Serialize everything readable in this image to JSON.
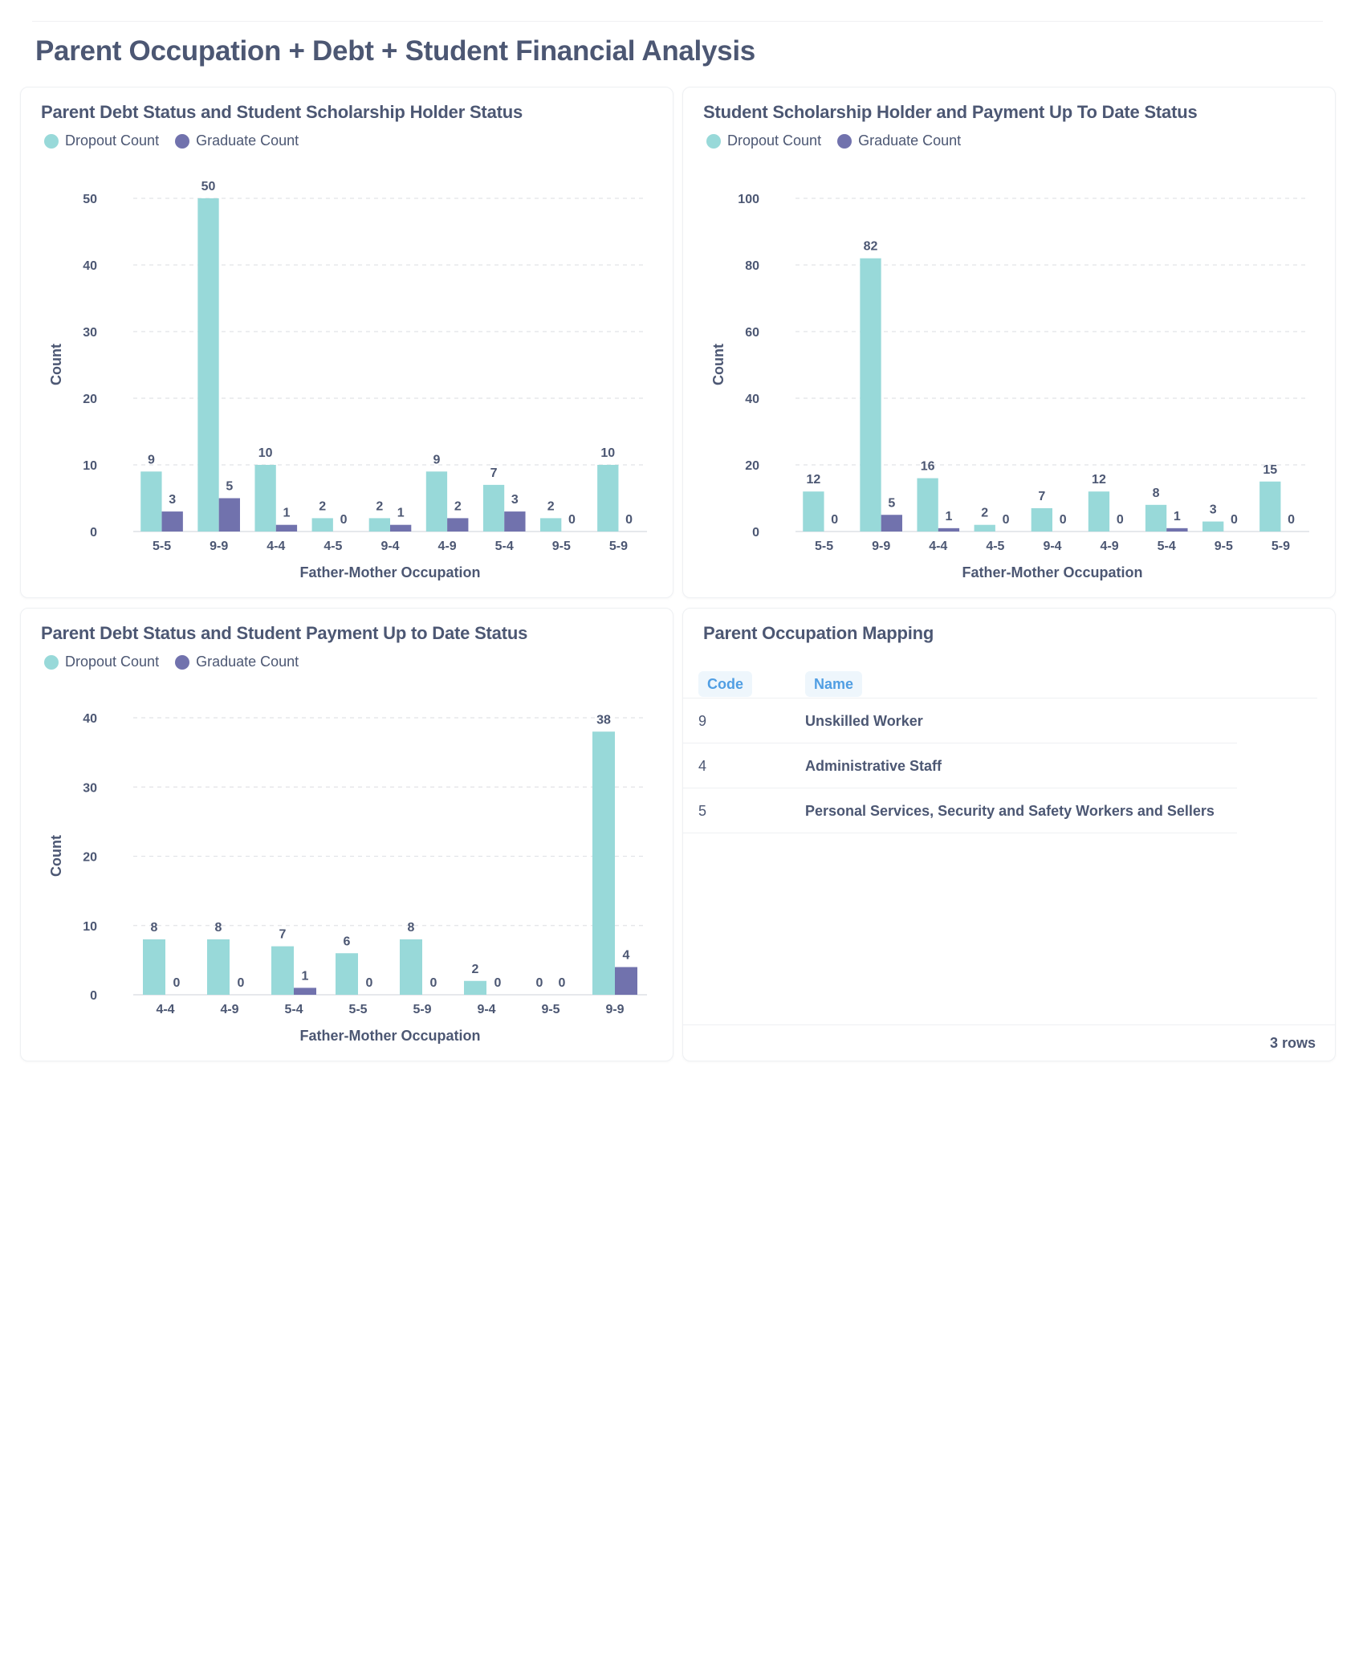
{
  "dashboard": {
    "title": "Parent Occupation + Debt + Student Financial Analysis"
  },
  "colors": {
    "dropout": "#98d9d9",
    "graduate": "#7172ad",
    "grid": "#e2e4e8",
    "text": "#4c5773",
    "accent": "#509ee3"
  },
  "chart_data": [
    {
      "type": "bar",
      "title": "Parent Debt Status and Student Scholarship Holder Status",
      "xlabel": "Father-Mother Occupation",
      "ylabel": "Count",
      "ylim": [
        0,
        50
      ],
      "yticks": [
        0,
        10,
        20,
        30,
        40,
        50
      ],
      "grid": true,
      "legend": "top-left",
      "categories": [
        "5-5",
        "9-9",
        "4-4",
        "4-5",
        "9-4",
        "4-9",
        "5-4",
        "9-5",
        "5-9"
      ],
      "series": [
        {
          "name": "Dropout Count",
          "values": [
            9,
            50,
            10,
            2,
            2,
            9,
            7,
            2,
            10
          ]
        },
        {
          "name": "Graduate Count",
          "values": [
            3,
            5,
            1,
            0,
            1,
            2,
            3,
            0,
            0
          ]
        }
      ]
    },
    {
      "type": "bar",
      "title": "Student Scholarship Holder and Payment Up To Date Status",
      "xlabel": "Father-Mother Occupation",
      "ylabel": "Count",
      "ylim": [
        0,
        100
      ],
      "yticks": [
        0,
        20,
        40,
        60,
        80,
        100
      ],
      "grid": true,
      "legend": "top-left",
      "categories": [
        "5-5",
        "9-9",
        "4-4",
        "4-5",
        "9-4",
        "4-9",
        "5-4",
        "9-5",
        "5-9"
      ],
      "series": [
        {
          "name": "Dropout Count",
          "values": [
            12,
            82,
            16,
            2,
            7,
            12,
            8,
            3,
            15
          ]
        },
        {
          "name": "Graduate Count",
          "values": [
            0,
            5,
            1,
            0,
            0,
            0,
            1,
            0,
            0
          ]
        }
      ]
    },
    {
      "type": "bar",
      "title": "Parent Debt Status and Student Payment Up to Date Status",
      "xlabel": "Father-Mother Occupation",
      "ylabel": "Count",
      "ylim": [
        0,
        40
      ],
      "yticks": [
        0,
        10,
        20,
        30,
        40
      ],
      "grid": true,
      "legend": "top-left",
      "categories": [
        "4-4",
        "4-9",
        "5-4",
        "5-5",
        "5-9",
        "9-4",
        "9-5",
        "9-9"
      ],
      "series": [
        {
          "name": "Dropout Count",
          "values": [
            8,
            8,
            7,
            6,
            8,
            2,
            0,
            38
          ]
        },
        {
          "name": "Graduate Count",
          "values": [
            0,
            0,
            1,
            0,
            0,
            0,
            0,
            4
          ]
        }
      ]
    }
  ],
  "mapping_table": {
    "title": "Parent Occupation Mapping",
    "columns": [
      "Code",
      "Name"
    ],
    "rows": [
      {
        "code": "9",
        "name": "Unskilled Worker"
      },
      {
        "code": "4",
        "name": "Administrative Staff"
      },
      {
        "code": "5",
        "name": "Personal Services, Security and Safety Workers and Sellers"
      }
    ],
    "row_count": "3 rows"
  }
}
